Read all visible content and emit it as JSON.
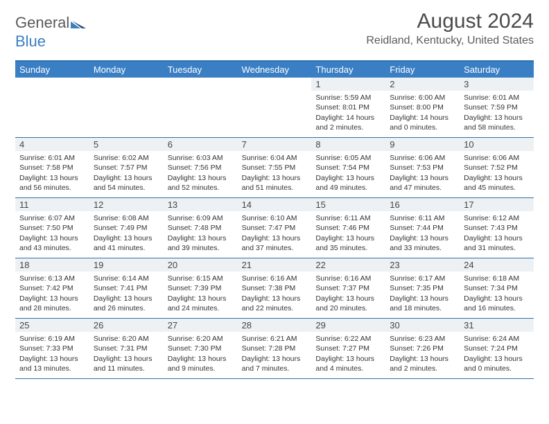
{
  "brand": {
    "name_part1": "General",
    "name_part2": "Blue"
  },
  "title": "August 2024",
  "location": "Reidland, Kentucky, United States",
  "colors": {
    "header_bar": "#3a7fc4",
    "header_text": "#ffffff",
    "rule": "#2f6fa8",
    "daynum_bg": "#eef1f3",
    "body_text": "#333333"
  },
  "days_of_week": [
    "Sunday",
    "Monday",
    "Tuesday",
    "Wednesday",
    "Thursday",
    "Friday",
    "Saturday"
  ],
  "grid": {
    "leading_blanks": 4,
    "days": [
      {
        "n": 1,
        "sr": "5:59 AM",
        "ss": "8:01 PM",
        "dl": "14 hours and 2 minutes."
      },
      {
        "n": 2,
        "sr": "6:00 AM",
        "ss": "8:00 PM",
        "dl": "14 hours and 0 minutes."
      },
      {
        "n": 3,
        "sr": "6:01 AM",
        "ss": "7:59 PM",
        "dl": "13 hours and 58 minutes."
      },
      {
        "n": 4,
        "sr": "6:01 AM",
        "ss": "7:58 PM",
        "dl": "13 hours and 56 minutes."
      },
      {
        "n": 5,
        "sr": "6:02 AM",
        "ss": "7:57 PM",
        "dl": "13 hours and 54 minutes."
      },
      {
        "n": 6,
        "sr": "6:03 AM",
        "ss": "7:56 PM",
        "dl": "13 hours and 52 minutes."
      },
      {
        "n": 7,
        "sr": "6:04 AM",
        "ss": "7:55 PM",
        "dl": "13 hours and 51 minutes."
      },
      {
        "n": 8,
        "sr": "6:05 AM",
        "ss": "7:54 PM",
        "dl": "13 hours and 49 minutes."
      },
      {
        "n": 9,
        "sr": "6:06 AM",
        "ss": "7:53 PM",
        "dl": "13 hours and 47 minutes."
      },
      {
        "n": 10,
        "sr": "6:06 AM",
        "ss": "7:52 PM",
        "dl": "13 hours and 45 minutes."
      },
      {
        "n": 11,
        "sr": "6:07 AM",
        "ss": "7:50 PM",
        "dl": "13 hours and 43 minutes."
      },
      {
        "n": 12,
        "sr": "6:08 AM",
        "ss": "7:49 PM",
        "dl": "13 hours and 41 minutes."
      },
      {
        "n": 13,
        "sr": "6:09 AM",
        "ss": "7:48 PM",
        "dl": "13 hours and 39 minutes."
      },
      {
        "n": 14,
        "sr": "6:10 AM",
        "ss": "7:47 PM",
        "dl": "13 hours and 37 minutes."
      },
      {
        "n": 15,
        "sr": "6:11 AM",
        "ss": "7:46 PM",
        "dl": "13 hours and 35 minutes."
      },
      {
        "n": 16,
        "sr": "6:11 AM",
        "ss": "7:44 PM",
        "dl": "13 hours and 33 minutes."
      },
      {
        "n": 17,
        "sr": "6:12 AM",
        "ss": "7:43 PM",
        "dl": "13 hours and 31 minutes."
      },
      {
        "n": 18,
        "sr": "6:13 AM",
        "ss": "7:42 PM",
        "dl": "13 hours and 28 minutes."
      },
      {
        "n": 19,
        "sr": "6:14 AM",
        "ss": "7:41 PM",
        "dl": "13 hours and 26 minutes."
      },
      {
        "n": 20,
        "sr": "6:15 AM",
        "ss": "7:39 PM",
        "dl": "13 hours and 24 minutes."
      },
      {
        "n": 21,
        "sr": "6:16 AM",
        "ss": "7:38 PM",
        "dl": "13 hours and 22 minutes."
      },
      {
        "n": 22,
        "sr": "6:16 AM",
        "ss": "7:37 PM",
        "dl": "13 hours and 20 minutes."
      },
      {
        "n": 23,
        "sr": "6:17 AM",
        "ss": "7:35 PM",
        "dl": "13 hours and 18 minutes."
      },
      {
        "n": 24,
        "sr": "6:18 AM",
        "ss": "7:34 PM",
        "dl": "13 hours and 16 minutes."
      },
      {
        "n": 25,
        "sr": "6:19 AM",
        "ss": "7:33 PM",
        "dl": "13 hours and 13 minutes."
      },
      {
        "n": 26,
        "sr": "6:20 AM",
        "ss": "7:31 PM",
        "dl": "13 hours and 11 minutes."
      },
      {
        "n": 27,
        "sr": "6:20 AM",
        "ss": "7:30 PM",
        "dl": "13 hours and 9 minutes."
      },
      {
        "n": 28,
        "sr": "6:21 AM",
        "ss": "7:28 PM",
        "dl": "13 hours and 7 minutes."
      },
      {
        "n": 29,
        "sr": "6:22 AM",
        "ss": "7:27 PM",
        "dl": "13 hours and 4 minutes."
      },
      {
        "n": 30,
        "sr": "6:23 AM",
        "ss": "7:26 PM",
        "dl": "13 hours and 2 minutes."
      },
      {
        "n": 31,
        "sr": "6:24 AM",
        "ss": "7:24 PM",
        "dl": "13 hours and 0 minutes."
      }
    ]
  },
  "labels": {
    "sunrise": "Sunrise:",
    "sunset": "Sunset:",
    "daylight": "Daylight:"
  }
}
